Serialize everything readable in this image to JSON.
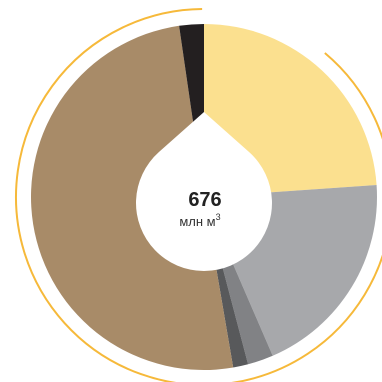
{
  "chart_data": {
    "type": "pie",
    "center_value": "676",
    "center_unit": "млн м",
    "center_unit_sup": "3",
    "slices": [
      {
        "value": 23.9,
        "color": "#fbe08f"
      },
      {
        "value": 19.6,
        "color": "#a7a8ab"
      },
      {
        "value": 2.4,
        "color": "#818285"
      },
      {
        "value": 1.4,
        "color": "#58595b"
      },
      {
        "value": 50.4,
        "color": "#a88b68"
      },
      {
        "value": 2.3,
        "color": "#231f20"
      }
    ]
  },
  "colors": {
    "ring": "#f6b93a",
    "background": "#ffffff"
  }
}
